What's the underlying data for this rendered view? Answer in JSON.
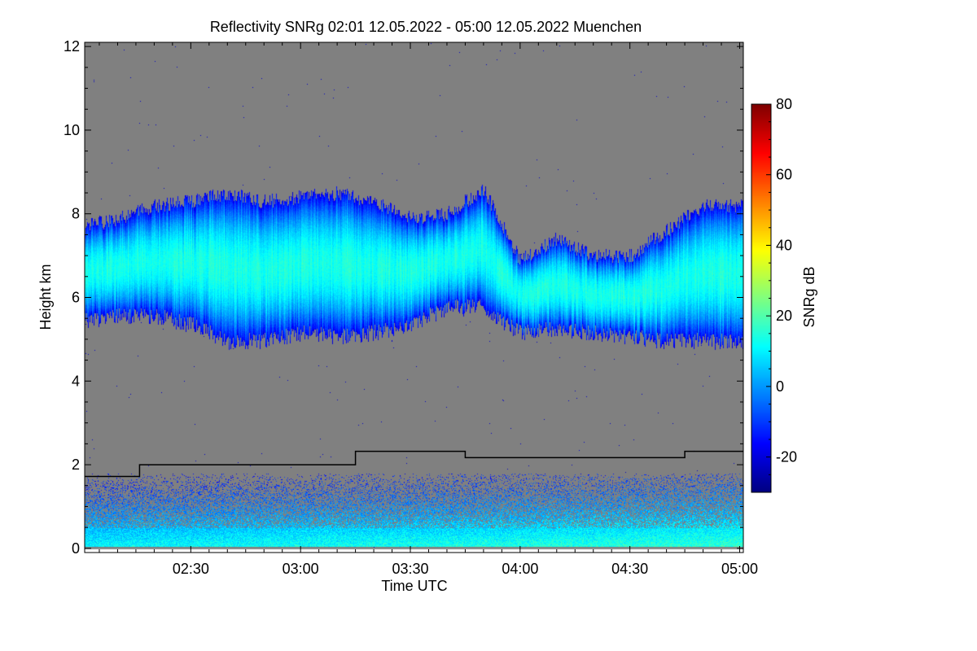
{
  "chart_data": {
    "type": "heatmap",
    "title": "Reflectivity SNRg   02:01 12.05.2022 - 05:00 12.05.2022 Muenchen",
    "xlabel": "Time UTC",
    "ylabel": "Height km",
    "xlim_minutes_utc": [
      121,
      301
    ],
    "ylim": [
      -0.1,
      12.1
    ],
    "xticks": [
      {
        "label": "02:30",
        "min": 150
      },
      {
        "label": "03:00",
        "min": 180
      },
      {
        "label": "03:30",
        "min": 210
      },
      {
        "label": "04:00",
        "min": 240
      },
      {
        "label": "04:30",
        "min": 270
      },
      {
        "label": "05:00",
        "min": 300
      }
    ],
    "yticks": [
      0,
      2,
      4,
      6,
      8,
      10,
      12
    ],
    "colorbar": {
      "label": "SNRg dB",
      "range": [
        -30,
        80
      ],
      "ticks": [
        -20,
        0,
        20,
        40,
        60,
        80
      ],
      "colormap": "jet"
    },
    "background_color": "#808080",
    "cloud_layer": {
      "times_min": [
        121,
        130,
        140,
        150,
        160,
        170,
        180,
        190,
        200,
        210,
        220,
        230,
        240,
        250,
        260,
        270,
        280,
        290,
        301
      ],
      "top_km": [
        7.7,
        7.9,
        8.2,
        8.3,
        8.5,
        8.3,
        8.4,
        8.5,
        8.3,
        7.9,
        8.0,
        8.6,
        6.9,
        7.4,
        7.0,
        7.0,
        7.6,
        8.2,
        8.2
      ],
      "base_km": [
        5.5,
        5.6,
        5.6,
        5.4,
        5.0,
        5.0,
        5.2,
        5.1,
        5.2,
        5.4,
        5.8,
        5.8,
        5.2,
        5.3,
        5.2,
        5.1,
        5.0,
        5.0,
        5.0
      ],
      "typical_snr_db": 10
    },
    "boundary_layer": {
      "top_km": 1.8,
      "typical_snr_db": 5
    },
    "mixing_layer_height": {
      "times_min": [
        121,
        136,
        136,
        195,
        195,
        225,
        225,
        285,
        285,
        301
      ],
      "height_km": [
        1.72,
        1.72,
        2.0,
        2.0,
        2.32,
        2.32,
        2.17,
        2.17,
        2.32,
        2.32
      ]
    }
  }
}
